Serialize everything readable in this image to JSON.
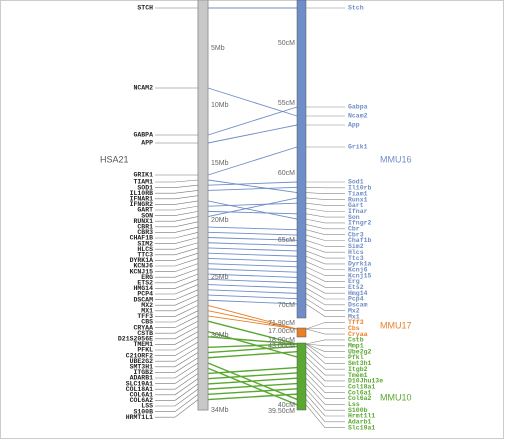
{
  "left": {
    "name": "HSA21",
    "scale": [
      "5Mb",
      "10Mb",
      "15Mb",
      "20Mb",
      "25Mb",
      "30Mb",
      "34Mb"
    ],
    "genes": [
      "STCH",
      "NCAM2",
      "GABPA",
      "APP",
      "GRIK1",
      "TIAM1",
      "SOD1",
      "IL10RB",
      "IFNAR1",
      "IFNGR2",
      "GART",
      "SON",
      "RUNX1",
      "CBR1",
      "CBR3",
      "CHAF1B",
      "SIM2",
      "HLCS",
      "TTC3",
      "DYRK1A",
      "KCNJ6",
      "KCNJ15",
      "ERG",
      "ETS2",
      "HMG14",
      "PCP4",
      "DSCAM",
      "MX2",
      "MX1",
      "TFF3",
      "CBS",
      "CRYAA",
      "CSTB",
      "D21S2056E",
      "TMEM1",
      "PFKL",
      "C21ORF2",
      "UBE2G2",
      "SMT3H1",
      "ITGB2",
      "ADARB1",
      "SLC19A1",
      "COL18A1",
      "COL6A1",
      "COL6A2",
      "LSS",
      "S100B",
      "HRMT1L1"
    ]
  },
  "right": [
    {
      "name": "MMU16",
      "color": "#6f8dc6",
      "scale": [
        "50cM",
        "55cM",
        "60cM",
        "65cM",
        "70cM",
        "71.90cM"
      ],
      "genes": [
        "Stch",
        "Gabpa",
        "Ncam2",
        "App",
        "Grik1",
        "Sod1",
        "Il10rb",
        "Tiam1",
        "Runx1",
        "Gart",
        "Ifnar",
        "Son",
        "Ifngr2",
        "Cbr",
        "Cbr3",
        "Chaf1b",
        "Sim2",
        "Hlcs",
        "Ttc3",
        "Dyrk1a",
        "Kcnj6",
        "Kcnj15",
        "Erg",
        "Ets2",
        "Hmg14",
        "Pcp4",
        "Dscam",
        "Mx2",
        "Mx1"
      ]
    },
    {
      "name": "MMU17",
      "color": "#e8802a",
      "scale": [
        "17.00cM",
        "18.00cM"
      ],
      "genes": [
        "Tff3",
        "Cbs",
        "Cryaa"
      ]
    },
    {
      "name": "MMU10",
      "color": "#5aa832",
      "scale": [
        "43.00cM",
        "40cM",
        "39.50cM"
      ],
      "genes": [
        "Cstb",
        "Mmp1",
        "Ube2g2",
        "Pfkl",
        "Smt3h1",
        "Itgb2",
        "Tmem1",
        "D10Jhu13e",
        "Col18a1",
        "Col6a1",
        "Col6a2",
        "Lss",
        "S100b",
        "Hrmt1l1",
        "Adarb1",
        "Slc19a1"
      ]
    }
  ]
}
